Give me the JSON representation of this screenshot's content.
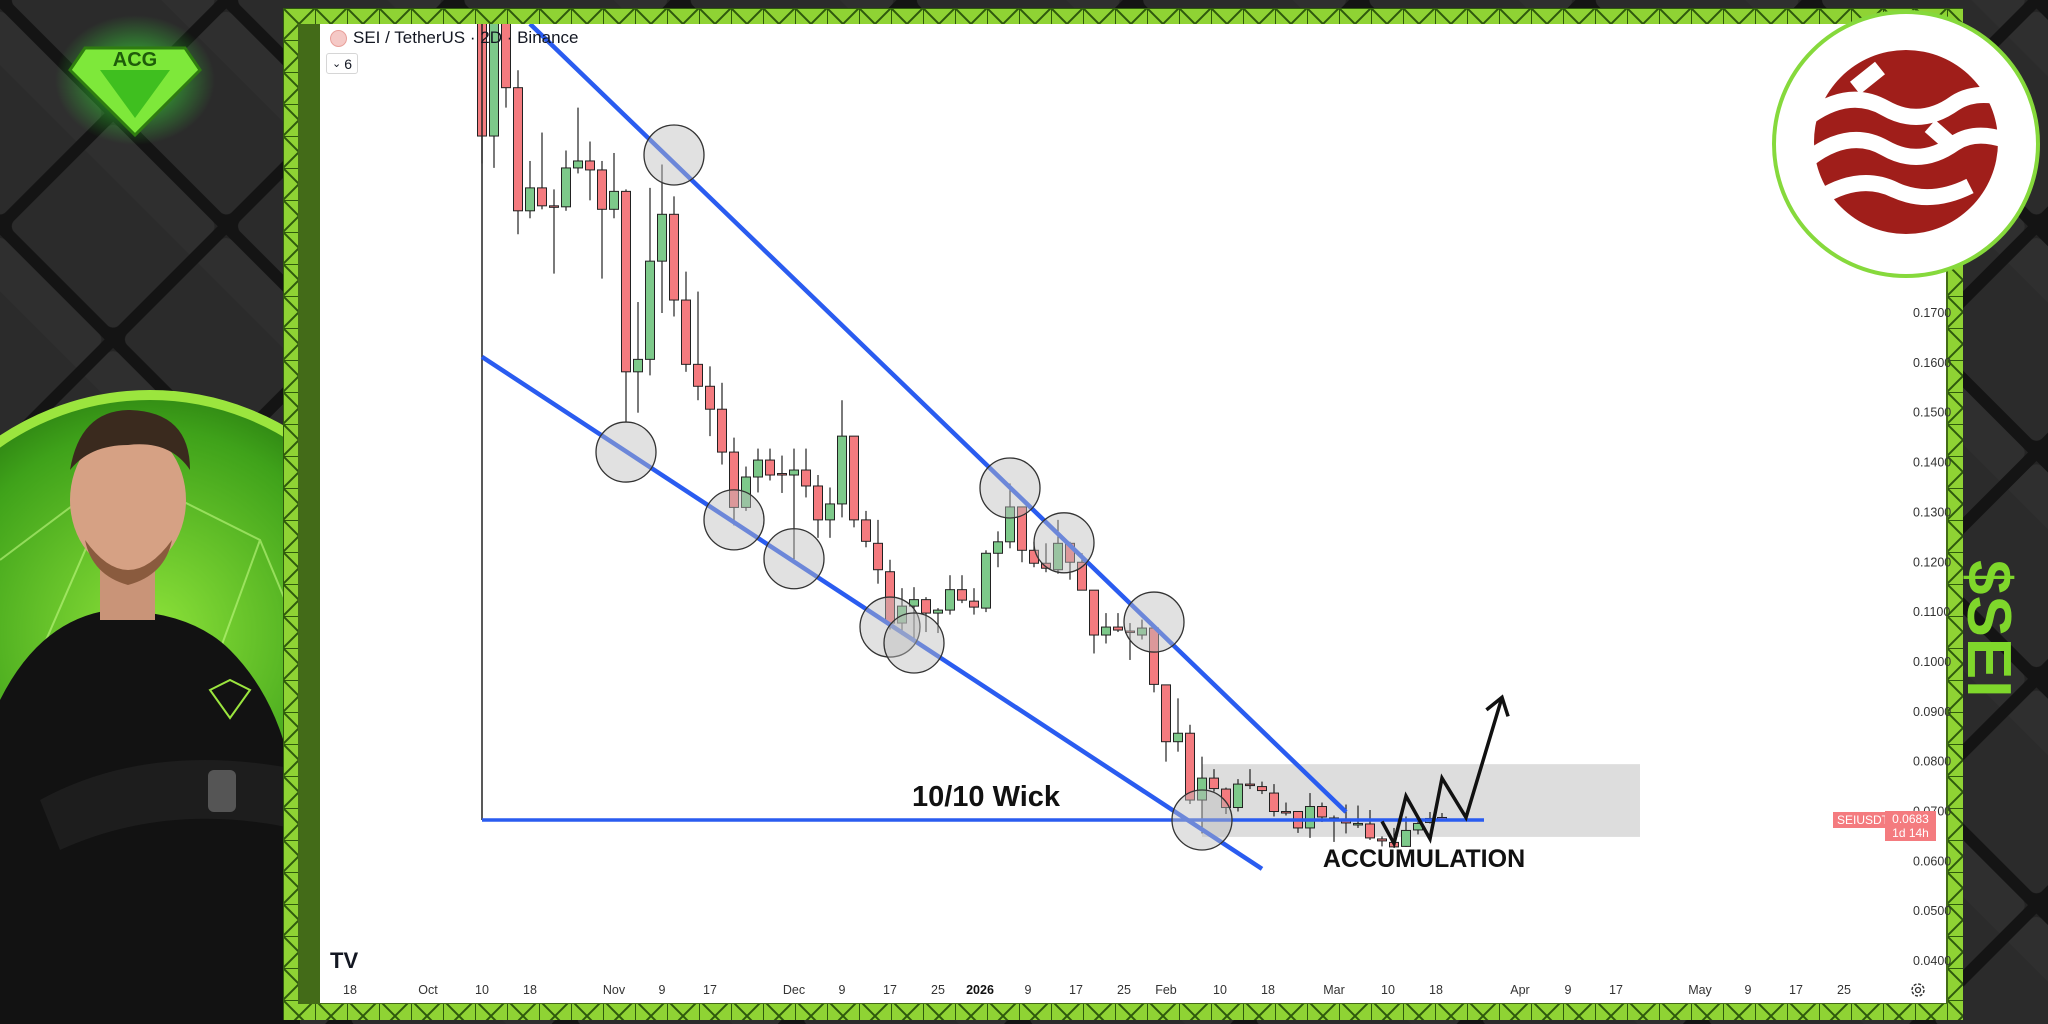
{
  "header": {
    "symbol_title": "SEI / TetherUS · 2D · Binance",
    "indicator_count": "6",
    "tradingview_logo": "TV"
  },
  "branding": {
    "left_logo_text": "ACG",
    "ticker_badge": "$SEI",
    "coin_logo": "SEI",
    "accent_color": "#7fd72b",
    "coin_color": "#a01e1a"
  },
  "price_tag": {
    "symbol": "SEIUSDT",
    "price": "0.0683",
    "countdown": "1d 14h"
  },
  "chart_data": {
    "type": "candlestick",
    "title": "SEI / TetherUS · 2D · Binance",
    "interval": "2D",
    "ylim": [
      0.0385,
      0.2288
    ],
    "y_ticks": [
      "0.1700",
      "0.1600",
      "0.1500",
      "0.1400",
      "0.1300",
      "0.1200",
      "0.1100",
      "0.1000",
      "0.0900",
      "0.0800",
      "0.0700",
      "0.0600",
      "0.0500",
      "0.0400"
    ],
    "x_ticks": [
      {
        "label": "18",
        "date": "2025-09-18"
      },
      {
        "label": "Oct",
        "date": "2025-10-01"
      },
      {
        "label": "10",
        "date": "2025-10-10"
      },
      {
        "label": "18",
        "date": "2025-10-18"
      },
      {
        "label": "Nov",
        "date": "2025-11-01"
      },
      {
        "label": "9",
        "date": "2025-11-09"
      },
      {
        "label": "17",
        "date": "2025-11-17"
      },
      {
        "label": "Dec",
        "date": "2025-12-01"
      },
      {
        "label": "9",
        "date": "2025-12-09"
      },
      {
        "label": "17",
        "date": "2025-12-17"
      },
      {
        "label": "25",
        "date": "2025-12-25"
      },
      {
        "label": "2026",
        "date": "2026-01-01",
        "bold": true
      },
      {
        "label": "9",
        "date": "2026-01-09"
      },
      {
        "label": "17",
        "date": "2026-01-17"
      },
      {
        "label": "25",
        "date": "2026-01-25"
      },
      {
        "label": "Feb",
        "date": "2026-02-01"
      },
      {
        "label": "10",
        "date": "2026-02-10"
      },
      {
        "label": "18",
        "date": "2026-02-18"
      },
      {
        "label": "Mar",
        "date": "2026-03-01"
      },
      {
        "label": "10",
        "date": "2026-03-10"
      },
      {
        "label": "18",
        "date": "2026-03-18"
      },
      {
        "label": "Apr",
        "date": "2026-04-01"
      },
      {
        "label": "9",
        "date": "2026-04-09"
      },
      {
        "label": "17",
        "date": "2026-04-17"
      },
      {
        "label": "May",
        "date": "2026-05-01"
      },
      {
        "label": "9",
        "date": "2026-05-09"
      },
      {
        "label": "17",
        "date": "2026-05-17"
      },
      {
        "label": "25",
        "date": "2026-05-25"
      }
    ],
    "up_color": "#7dc98a",
    "down_color": "#f47b7f",
    "candles_ohlc": [
      [
        "2025-10-10",
        0.236,
        0.24,
        0.2,
        0.2055
      ],
      [
        "2025-10-12",
        0.2055,
        0.24,
        0.1991,
        0.236
      ],
      [
        "2025-10-14",
        0.236,
        0.24,
        0.2112,
        0.2152
      ],
      [
        "2025-10-16",
        0.2152,
        0.2187,
        0.1858,
        0.1905
      ],
      [
        "2025-10-18",
        0.1905,
        0.2005,
        0.189,
        0.1951
      ],
      [
        "2025-10-20",
        0.1951,
        0.2062,
        0.1908,
        0.1915
      ],
      [
        "2025-10-22",
        0.1915,
        0.1948,
        0.1779,
        0.1913
      ],
      [
        "2025-10-24",
        0.1913,
        0.2026,
        0.1905,
        0.1991
      ],
      [
        "2025-10-26",
        0.1991,
        0.2112,
        0.198,
        0.2005
      ],
      [
        "2025-10-28",
        0.2005,
        0.2044,
        0.1926,
        0.1987
      ],
      [
        "2025-10-30",
        0.1987,
        0.2005,
        0.1769,
        0.1908
      ],
      [
        "2025-11-01",
        0.1908,
        0.2021,
        0.189,
        0.1944
      ],
      [
        "2025-11-03",
        0.1944,
        0.1948,
        0.1482,
        0.1582
      ],
      [
        "2025-11-05",
        0.1582,
        0.1722,
        0.15,
        0.1607
      ],
      [
        "2025-11-07",
        0.1607,
        0.1951,
        0.1575,
        0.1804
      ],
      [
        "2025-11-09",
        0.1804,
        0.1998,
        0.17,
        0.1898
      ],
      [
        "2025-11-11",
        0.1898,
        0.1934,
        0.1693,
        0.1726
      ],
      [
        "2025-11-13",
        0.1726,
        0.1783,
        0.1582,
        0.1597
      ],
      [
        "2025-11-15",
        0.1597,
        0.1743,
        0.1525,
        0.1553
      ],
      [
        "2025-11-17",
        0.1553,
        0.1593,
        0.1453,
        0.1507
      ],
      [
        "2025-11-19",
        0.1507,
        0.156,
        0.1396,
        0.1421
      ],
      [
        "2025-11-21",
        0.1421,
        0.145,
        0.1274,
        0.131
      ],
      [
        "2025-11-23",
        0.131,
        0.1392,
        0.1303,
        0.1371
      ],
      [
        "2025-11-25",
        0.1371,
        0.1428,
        0.134,
        0.1405
      ],
      [
        "2025-11-27",
        0.1405,
        0.1428,
        0.1364,
        0.1375
      ],
      [
        "2025-11-29",
        0.1378,
        0.1414,
        0.1339,
        0.1375
      ],
      [
        "2025-12-01",
        0.1375,
        0.1428,
        0.1206,
        0.1385
      ],
      [
        "2025-12-03",
        0.1385,
        0.1428,
        0.133,
        0.1353
      ],
      [
        "2025-12-05",
        0.1353,
        0.1375,
        0.1249,
        0.1285
      ],
      [
        "2025-12-07",
        0.1285,
        0.135,
        0.1249,
        0.1317
      ],
      [
        "2025-12-09",
        0.1317,
        0.1525,
        0.129,
        0.1453
      ],
      [
        "2025-12-11",
        0.1453,
        0.1453,
        0.127,
        0.1285
      ],
      [
        "2025-12-13",
        0.1285,
        0.1303,
        0.123,
        0.1242
      ],
      [
        "2025-12-15",
        0.1238,
        0.1285,
        0.1157,
        0.1185
      ],
      [
        "2025-12-17",
        0.1181,
        0.1205,
        0.1065,
        0.1078
      ],
      [
        "2025-12-19",
        0.1078,
        0.1148,
        0.1054,
        0.1112
      ],
      [
        "2025-12-21",
        0.1112,
        0.115,
        0.104,
        0.1125
      ],
      [
        "2025-12-23",
        0.1125,
        0.113,
        0.106,
        0.1098
      ],
      [
        "2025-12-25",
        0.1098,
        0.1108,
        0.1058,
        0.1104
      ],
      [
        "2025-12-27",
        0.1104,
        0.1174,
        0.1095,
        0.1145
      ],
      [
        "2025-12-29",
        0.1145,
        0.1174,
        0.1118,
        0.1124
      ],
      [
        "2025-12-31",
        0.1122,
        0.1148,
        0.1095,
        0.111
      ],
      [
        "2026-01-02",
        0.1108,
        0.1224,
        0.11,
        0.1218
      ],
      [
        "2026-01-04",
        0.1218,
        0.1262,
        0.119,
        0.1241
      ],
      [
        "2026-01-06",
        0.1241,
        0.1358,
        0.1228,
        0.1311
      ],
      [
        "2026-01-08",
        0.1311,
        0.1311,
        0.12,
        0.1224
      ],
      [
        "2026-01-10",
        0.1224,
        0.1241,
        0.119,
        0.1198
      ],
      [
        "2026-01-12",
        0.1198,
        0.1238,
        0.118,
        0.1188
      ],
      [
        "2026-01-14",
        0.1185,
        0.1285,
        0.1177,
        0.1238
      ],
      [
        "2026-01-16",
        0.1238,
        0.1241,
        0.1165,
        0.12
      ],
      [
        "2026-01-18",
        0.12,
        0.1218,
        0.1144,
        0.1144
      ],
      [
        "2026-01-20",
        0.1144,
        0.1144,
        0.1017,
        0.1054
      ],
      [
        "2026-01-22",
        0.1054,
        0.1098,
        0.1037,
        0.107
      ],
      [
        "2026-01-24",
        0.107,
        0.1098,
        0.106,
        0.1064
      ],
      [
        "2026-01-26",
        0.1062,
        0.1078,
        0.1004,
        0.106
      ],
      [
        "2026-01-28",
        0.1054,
        0.1085,
        0.1045,
        0.1068
      ],
      [
        "2026-01-30",
        0.1068,
        0.1068,
        0.0939,
        0.0955
      ],
      [
        "2026-02-01",
        0.0954,
        0.0954,
        0.08,
        0.084
      ],
      [
        "2026-02-03",
        0.084,
        0.0927,
        0.082,
        0.0857
      ],
      [
        "2026-02-05",
        0.0857,
        0.0874,
        0.0715,
        0.0723
      ],
      [
        "2026-02-07",
        0.0723,
        0.081,
        0.0656,
        0.0767
      ],
      [
        "2026-02-09",
        0.0767,
        0.0785,
        0.074,
        0.0746
      ],
      [
        "2026-02-11",
        0.0745,
        0.0748,
        0.0695,
        0.0708
      ],
      [
        "2026-02-13",
        0.0708,
        0.0765,
        0.07,
        0.0755
      ],
      [
        "2026-02-15",
        0.0755,
        0.0785,
        0.0745,
        0.0754
      ],
      [
        "2026-02-17",
        0.075,
        0.076,
        0.0735,
        0.0742
      ],
      [
        "2026-02-19",
        0.0737,
        0.0755,
        0.069,
        0.07
      ],
      [
        "2026-02-21",
        0.07,
        0.0718,
        0.0692,
        0.0699
      ],
      [
        "2026-02-23",
        0.07,
        0.07,
        0.0657,
        0.0667
      ],
      [
        "2026-02-25",
        0.0667,
        0.0737,
        0.0647,
        0.071
      ],
      [
        "2026-02-27",
        0.071,
        0.0718,
        0.0679,
        0.0689
      ],
      [
        "2026-03-01",
        0.0687,
        0.0692,
        0.0639,
        0.0687
      ],
      [
        "2026-03-03",
        0.0685,
        0.0714,
        0.0656,
        0.0677
      ],
      [
        "2026-03-05",
        0.0676,
        0.0712,
        0.0667,
        0.0676
      ],
      [
        "2026-03-07",
        0.0675,
        0.0703,
        0.0643,
        0.0647
      ],
      [
        "2026-03-09",
        0.0645,
        0.065,
        0.063,
        0.0641
      ],
      [
        "2026-03-11",
        0.0638,
        0.0667,
        0.0627,
        0.0629
      ],
      [
        "2026-03-13",
        0.063,
        0.069,
        0.0629,
        0.0662
      ],
      [
        "2026-03-15",
        0.0663,
        0.068,
        0.0654,
        0.0676
      ],
      [
        "2026-03-17",
        0.0678,
        0.0699,
        0.0676,
        0.0686
      ],
      [
        "2026-03-19",
        0.0688,
        0.0697,
        0.0683,
        0.0684
      ]
    ],
    "last_price": 0.0683,
    "drawings": {
      "line_color": "#2a5cf0",
      "upper_trendline": [
        [
          "2025-10-18",
          0.228
        ],
        [
          "2026-03-03",
          0.0699
        ]
      ],
      "lower_trendline": [
        [
          "2025-10-10",
          0.1612
        ],
        [
          "2026-02-17",
          0.0585
        ]
      ],
      "wick_level": {
        "price": 0.0683,
        "from": "2025-10-10",
        "to": "2026-03-26"
      },
      "wick_vertical": {
        "date": "2025-10-10",
        "from_price": 0.0683
      },
      "accumulation_box": {
        "from": "2026-02-07",
        "to": "2026-04-21",
        "low": 0.0649,
        "high": 0.0795
      },
      "touch_circles": [
        [
          "2025-11-11",
          0.2017
        ],
        [
          "2025-11-03",
          0.1421
        ],
        [
          "2025-11-21",
          0.1285
        ],
        [
          "2025-12-01",
          0.1207
        ],
        [
          "2025-12-17",
          0.107
        ],
        [
          "2025-12-21",
          0.1038
        ],
        [
          "2026-01-06",
          0.1349
        ],
        [
          "2026-01-15",
          0.1239
        ],
        [
          "2026-01-30",
          0.108
        ],
        [
          "2026-02-07",
          0.0683
        ]
      ],
      "projection_path": [
        [
          "2026-03-09",
          0.068
        ],
        [
          "2026-03-11",
          0.0636
        ],
        [
          "2026-03-13",
          0.0731
        ],
        [
          "2026-03-17",
          0.0645
        ],
        [
          "2026-03-19",
          0.0767
        ],
        [
          "2026-03-23",
          0.0688
        ],
        [
          "2026-03-29",
          0.0929
        ]
      ],
      "labels": [
        {
          "text": "10/10 Wick",
          "date": "2026-01-02",
          "price": 0.0729
        },
        {
          "text": "ACCUMULATION",
          "date": "2026-03-16",
          "price": 0.0607
        }
      ]
    }
  }
}
